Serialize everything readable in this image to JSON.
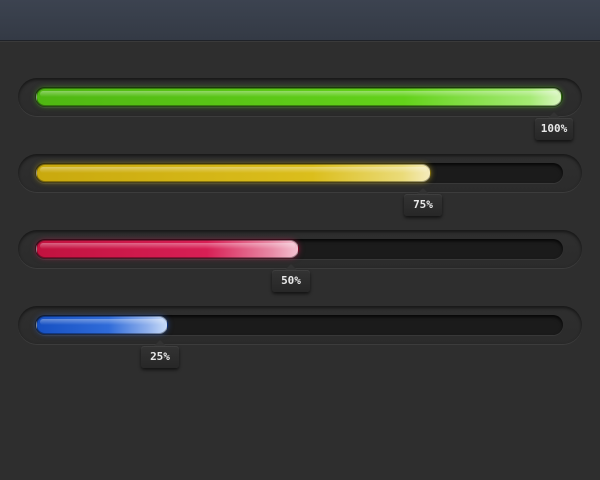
{
  "progress_bars": [
    {
      "label": "100%",
      "value": 100,
      "color": "#63d21a"
    },
    {
      "label": "75%",
      "value": 75,
      "color": "#dbbe1c"
    },
    {
      "label": "50%",
      "value": 50,
      "color": "#d81f55"
    },
    {
      "label": "25%",
      "value": 25,
      "color": "#2f6bd9"
    }
  ],
  "colors": {
    "background": "#2e2e2e",
    "topbar": "#3a404c"
  }
}
